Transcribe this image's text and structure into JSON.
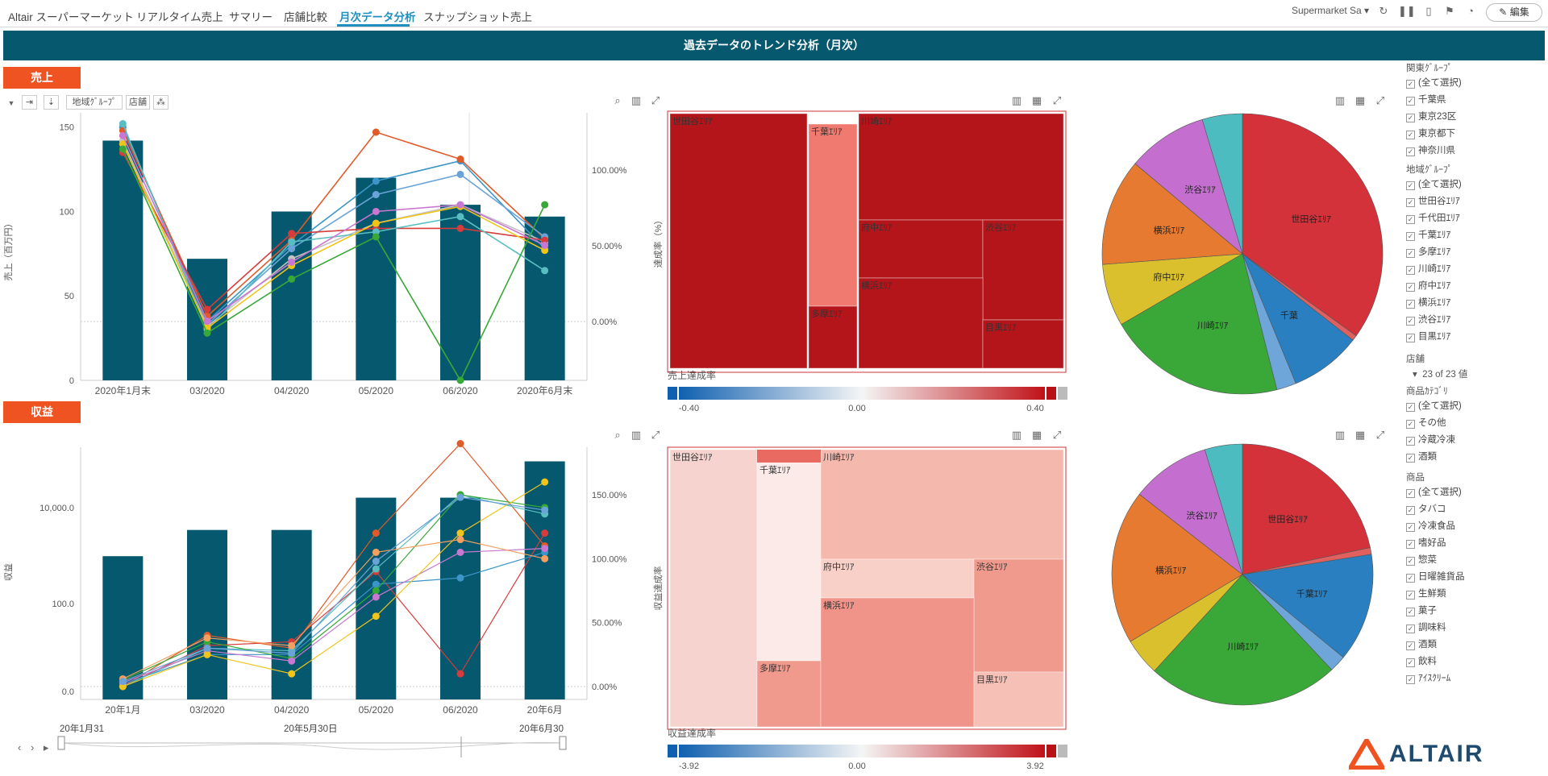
{
  "nav": {
    "tabs": [
      "Altair スーパーマーケット",
      "リアルタイム売上",
      "サマリー",
      "店舗比較",
      "月次データ分析",
      "スナップショット売上"
    ],
    "active_index": 4,
    "datasource": "Supermarket Sa",
    "edit_label": "編集",
    "icons": [
      "refresh-icon",
      "pause-icon",
      "pdf-icon",
      "bookmark-icon",
      "bell-icon",
      "pencil-icon"
    ]
  },
  "banner": {
    "title": "過去データのトレンド分析（月次）"
  },
  "sections": {
    "sales": "売上",
    "profit": "収益"
  },
  "toolbar": {
    "region": "地域ｸﾞﾙｰﾌﾟ",
    "store": "店舗"
  },
  "colors": {
    "bar": "#05586d",
    "accent": "#f05322",
    "header": "#05586d",
    "link": "#1e8fbf"
  },
  "chart_data": [
    {
      "type": "bar",
      "categories": [
        "2020年1月末",
        "03/2020",
        "04/2020",
        "05/2020",
        "06/2020",
        "2020年6月末"
      ],
      "values": [
        142,
        72,
        100,
        120,
        104,
        97
      ],
      "ylabel": "売上（百万円）",
      "ylim": [
        0,
        150
      ],
      "yticks": [
        "0",
        "50",
        "100",
        "150"
      ],
      "y2ticks": [
        "0.00%",
        "50.00%",
        "100.00%"
      ],
      "line_series": [
        {
          "color": "#3b95c8",
          "values": [
            150,
            35,
            80,
            118,
            130,
            78
          ]
        },
        {
          "color": "#e05a2a",
          "values": [
            148,
            38,
            83,
            147,
            131,
            84
          ]
        },
        {
          "color": "#6aa3d8",
          "values": [
            140,
            33,
            78,
            110,
            122,
            85
          ]
        },
        {
          "color": "#c3c3c3",
          "values": [
            142,
            32,
            72,
            93,
            104,
            82
          ]
        },
        {
          "color": "#d63c3c",
          "values": [
            135,
            42,
            87,
            90,
            90,
            83
          ]
        },
        {
          "color": "#59bec2",
          "values": [
            152,
            30,
            82,
            88,
            97,
            65
          ]
        },
        {
          "color": "#f0c419",
          "values": [
            140,
            31,
            68,
            93,
            103,
            77
          ]
        },
        {
          "color": "#c878d0",
          "values": [
            145,
            35,
            70,
            100,
            104,
            80
          ]
        },
        {
          "color": "#38a838",
          "values": [
            137,
            28,
            60,
            85,
            0,
            104
          ]
        }
      ]
    },
    {
      "type": "treemap",
      "ylabel": "達成率（%）",
      "legend_title": "売上達成率",
      "legend_min": "-0.40",
      "legend_mid": "0.00",
      "legend_max": "0.40",
      "cells": [
        {
          "label": "世田谷ｴﾘｱ",
          "color": "#b3151b"
        },
        {
          "label": "千葉ｴﾘｱ",
          "color": "#f07a70"
        },
        {
          "label": "多摩ｴﾘｱ",
          "color": "#b3151b"
        },
        {
          "label": "川崎ｴﾘｱ",
          "color": "#b3151b"
        },
        {
          "label": "府中ｴﾘｱ",
          "color": "#b3151b"
        },
        {
          "label": "渋谷ｴﾘｱ",
          "color": "#b3151b"
        },
        {
          "label": "横浜ｴﾘｱ",
          "color": "#b3151b"
        },
        {
          "label": "目黒ｴﾘｱ",
          "color": "#b3151b"
        }
      ]
    },
    {
      "type": "pie",
      "slices": [
        {
          "label": "世田谷ｴﾘｱ",
          "value": 34,
          "color": "#d3323a"
        },
        {
          "label": "",
          "value": 0.6,
          "color": "#e06060"
        },
        {
          "label": "千葉",
          "value": 8,
          "color": "#2a7fc1"
        },
        {
          "label": "",
          "value": 2.2,
          "color": "#6ea6da"
        },
        {
          "label": "川崎ｴﾘｱ",
          "value": 20,
          "color": "#3aa838"
        },
        {
          "label": "府中ｴﾘｱ",
          "value": 7,
          "color": "#d9c02c"
        },
        {
          "label": "横浜ｴﾘｱ",
          "value": 12,
          "color": "#e57a30"
        },
        {
          "label": "渋谷ｴﾘｱ",
          "value": 9,
          "color": "#c46fd0"
        },
        {
          "label": "",
          "value": 4.5,
          "color": "#4dbcc0"
        }
      ]
    },
    {
      "type": "bar",
      "categories": [
        "20年1月",
        "03/2020",
        "04/2020",
        "05/2020",
        "06/2020",
        "20年6月"
      ],
      "values": [
        7100,
        8400,
        8400,
        10000,
        10000,
        11800
      ],
      "ylabel": "収益",
      "yticks": [
        "0.0",
        "100.0",
        "10,000.0"
      ],
      "y2ticks": [
        "0.00%",
        "50.00%",
        "100.00%",
        "150.00%"
      ],
      "line_series": [
        {
          "color": "#e05a2a",
          "values": [
            0,
            40,
            30,
            120,
            190,
            110
          ]
        },
        {
          "color": "#d63c3c",
          "values": [
            0,
            32,
            35,
            90,
            10,
            120
          ]
        },
        {
          "color": "#3b95c8",
          "values": [
            2,
            25,
            25,
            80,
            85,
            105
          ]
        },
        {
          "color": "#59bec2",
          "values": [
            0,
            30,
            28,
            92,
            150,
            135
          ]
        },
        {
          "color": "#38a838",
          "values": [
            5,
            35,
            22,
            75,
            150,
            140
          ]
        },
        {
          "color": "#c878d0",
          "values": [
            3,
            28,
            20,
            70,
            105,
            108
          ]
        },
        {
          "color": "#f0c419",
          "values": [
            0,
            25,
            10,
            55,
            120,
            160
          ]
        },
        {
          "color": "#f5a060",
          "values": [
            6,
            38,
            32,
            105,
            115,
            100
          ]
        },
        {
          "color": "#6aa3d8",
          "values": [
            4,
            30,
            26,
            98,
            148,
            138
          ]
        }
      ]
    },
    {
      "type": "treemap",
      "ylabel": "収益達成率",
      "legend_title": "収益達成率",
      "legend_min": "-3.92",
      "legend_mid": "0.00",
      "legend_max": "3.92",
      "cells": [
        {
          "label": "世田谷ｴﾘｱ",
          "color": "#f6d3cf"
        },
        {
          "label": "千葉ｴﾘｱ",
          "color": "#fbeae8"
        },
        {
          "label": "多摩ｴﾘｱ",
          "color": "#f09a8e"
        },
        {
          "label": "川崎ｴﾘｱ",
          "color": "#f5b8ac"
        },
        {
          "label": "府中ｴﾘｱ",
          "color": "#f8d0c8"
        },
        {
          "label": "渋谷ｴﾘｱ",
          "color": "#f09a8e"
        },
        {
          "label": "横浜ｴﾘｱ",
          "color": "#f0948a"
        },
        {
          "label": "目黒ｴﾘｱ",
          "color": "#f6c0b6"
        }
      ]
    },
    {
      "type": "pie",
      "slices": [
        {
          "label": "世田谷ｴﾘｱ",
          "value": 21,
          "color": "#d3323a"
        },
        {
          "label": "",
          "value": 0.8,
          "color": "#e06060"
        },
        {
          "label": "千葉ｴﾘｱ",
          "value": 13,
          "color": "#2a7fc1"
        },
        {
          "label": "",
          "value": 2,
          "color": "#6ea6da"
        },
        {
          "label": "川崎ｴﾘｱ",
          "value": 23,
          "color": "#3aa838"
        },
        {
          "label": "",
          "value": 4.5,
          "color": "#d9c02c"
        },
        {
          "label": "横浜ｴﾘｱ",
          "value": 18.5,
          "color": "#e57a30"
        },
        {
          "label": "渋谷ｴﾘｱ",
          "value": 9.5,
          "color": "#c46fd0"
        },
        {
          "label": "",
          "value": 4.5,
          "color": "#4dbcc0"
        }
      ]
    }
  ],
  "timeline": {
    "start": "20年1月31",
    "mid": "20年5月30日",
    "end": "20年6月30"
  },
  "filters": {
    "kanto_title": "関東ｸﾞﾙｰﾌﾟ",
    "kanto_items": [
      "(全て選択)",
      "千葉県",
      "東京23区",
      "東京都下",
      "神奈川県"
    ],
    "region_title": "地域ｸﾞﾙｰﾌﾟ",
    "region_items": [
      "(全て選択)",
      "世田谷ｴﾘｱ",
      "千代田ｴﾘｱ",
      "千葉ｴﾘｱ",
      "多摩ｴﾘｱ",
      "川崎ｴﾘｱ",
      "府中ｴﾘｱ",
      "横浜ｴﾘｱ",
      "渋谷ｴﾘｱ",
      "目黒ｴﾘｱ"
    ],
    "store_title": "店舗",
    "store_count": "23 of 23 値",
    "category_title": "商品ｶﾃｺﾞﾘ",
    "category_items": [
      "(全て選択)",
      "その他",
      "冷蔵冷凍",
      "酒類"
    ],
    "product_title": "商品",
    "product_items": [
      "(全て選択)",
      "タバコ",
      "冷凍食品",
      "嗜好品",
      "惣菜",
      "日曜雑貨品",
      "生鮮類",
      "菓子",
      "調味料",
      "酒類",
      "飲料",
      "ｱｲｽｸﾘｰﾑ"
    ]
  },
  "logo": {
    "text": "ALTAIR"
  }
}
